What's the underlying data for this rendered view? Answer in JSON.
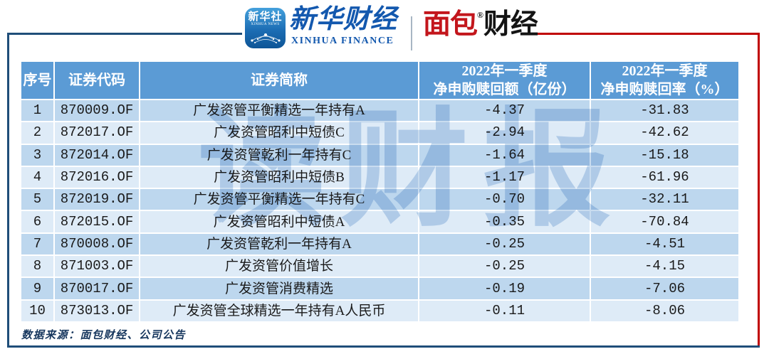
{
  "brand": {
    "xinhua_icon": {
      "title": "新华社",
      "subtitle": "XINHUA NEWS"
    },
    "xinhua_finance": {
      "cn": "新华财经",
      "en": "XINHUA FINANCE"
    },
    "mianbao_finance": {
      "red": "面包",
      "black": "财经",
      "reg": "®"
    }
  },
  "table": {
    "columns": [
      {
        "label": "序号"
      },
      {
        "label": "证券代码"
      },
      {
        "label": "证券简称"
      },
      {
        "line1": "2022年一季度",
        "line2": "净申购赎回额（亿份）"
      },
      {
        "line1": "2022年一季度",
        "line2": "净申购赎回率（%）"
      }
    ],
    "rows": [
      {
        "no": "1",
        "code": "870009.OF",
        "name": "广发资管平衡精选一年持有A",
        "net_amount": "-4.37",
        "net_rate": "-31.83"
      },
      {
        "no": "2",
        "code": "872017.OF",
        "name": "广发资管昭利中短债C",
        "net_amount": "-2.94",
        "net_rate": "-42.62"
      },
      {
        "no": "3",
        "code": "872014.OF",
        "name": "广发资管乾利一年持有C",
        "net_amount": "-1.64",
        "net_rate": "-15.18"
      },
      {
        "no": "4",
        "code": "872016.OF",
        "name": "广发资管昭利中短债B",
        "net_amount": "-1.17",
        "net_rate": "-61.96"
      },
      {
        "no": "5",
        "code": "872019.OF",
        "name": "广发资管平衡精选一年持有C",
        "net_amount": "-0.70",
        "net_rate": "-32.11"
      },
      {
        "no": "6",
        "code": "872015.OF",
        "name": "广发资管昭利中短债A",
        "net_amount": "-0.35",
        "net_rate": "-70.84"
      },
      {
        "no": "7",
        "code": "870008.OF",
        "name": "广发资管乾利一年持有A",
        "net_amount": "-0.25",
        "net_rate": "-4.51"
      },
      {
        "no": "8",
        "code": "871003.OF",
        "name": "广发资管价值增长",
        "net_amount": "-0.25",
        "net_rate": "-4.15"
      },
      {
        "no": "9",
        "code": "870017.OF",
        "name": "广发资管消费精选",
        "net_amount": "-0.19",
        "net_rate": "-7.06"
      },
      {
        "no": "10",
        "code": "873013.OF",
        "name": "广发资管全球精选一年持有A人民币",
        "net_amount": "-0.11",
        "net_rate": "-8.06"
      }
    ]
  },
  "chart_data": {
    "type": "table",
    "columns": [
      "序号",
      "证券代码",
      "证券简称",
      "2022年一季度净申购赎回额（亿份）",
      "2022年一季度净申购赎回率（%）"
    ],
    "rows": [
      [
        1,
        "870009.OF",
        "广发资管平衡精选一年持有A",
        -4.37,
        -31.83
      ],
      [
        2,
        "872017.OF",
        "广发资管昭利中短债C",
        -2.94,
        -42.62
      ],
      [
        3,
        "872014.OF",
        "广发资管乾利一年持有C",
        -1.64,
        -15.18
      ],
      [
        4,
        "872016.OF",
        "广发资管昭利中短债B",
        -1.17,
        -61.96
      ],
      [
        5,
        "872019.OF",
        "广发资管平衡精选一年持有C",
        -0.7,
        -32.11
      ],
      [
        6,
        "872015.OF",
        "广发资管昭利中短债A",
        -0.35,
        -70.84
      ],
      [
        7,
        "870008.OF",
        "广发资管乾利一年持有A",
        -0.25,
        -4.51
      ],
      [
        8,
        "871003.OF",
        "广发资管价值增长",
        -0.25,
        -4.15
      ],
      [
        9,
        "870017.OF",
        "广发资管消费精选",
        -0.19,
        -7.06
      ],
      [
        10,
        "873013.OF",
        "广发资管全球精选一年持有A人民币",
        -0.11,
        -8.06
      ]
    ]
  },
  "watermark": "读财报",
  "footer": {
    "source": "数据来源：面包财经、公司公告"
  },
  "colors": {
    "header_bg": "#5B9BD5",
    "row_odd": "#BDD7EE",
    "row_even": "#DEEBF7",
    "frame_blue": "#1F4E79",
    "frame_red": "#C00000",
    "brand_blue": "#1358AE",
    "brand_red": "#C3161C"
  }
}
